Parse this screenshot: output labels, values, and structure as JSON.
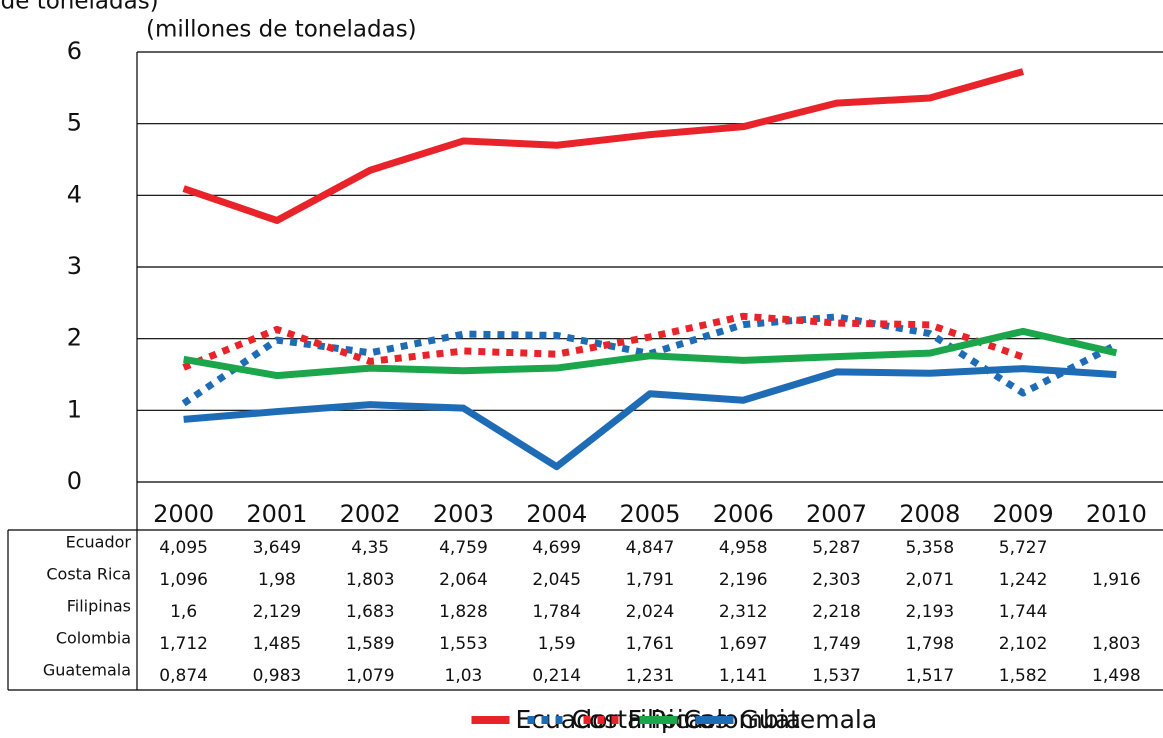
{
  "chart_data": {
    "type": "line",
    "subtitle": "(millones de toneladas)",
    "categories": [
      "2000",
      "2001",
      "2002",
      "2003",
      "2004",
      "2005",
      "2006",
      "2007",
      "2008",
      "2009",
      "2010"
    ],
    "ylim": [
      0,
      6
    ],
    "yticks": [
      0,
      1,
      2,
      3,
      4,
      5,
      6
    ],
    "grid": true,
    "legend": "bottom",
    "series": [
      {
        "name": "Ecuador",
        "color": "#e8232a",
        "style": "solid",
        "values": [
          4.095,
          3.649,
          4.35,
          4.759,
          4.699,
          4.847,
          4.958,
          5.287,
          5.358,
          5.727,
          null
        ],
        "value_labels": [
          "4,095",
          "3,649",
          "4,35",
          "4,759",
          "4,699",
          "4,847",
          "4,958",
          "5,287",
          "5,358",
          "5,727",
          null
        ]
      },
      {
        "name": "Costa Rica",
        "color": "#1f6cb6",
        "style": "dotted",
        "values": [
          1.096,
          1.98,
          1.803,
          2.064,
          2.045,
          1.791,
          2.196,
          2.303,
          2.071,
          1.242,
          1.916
        ],
        "value_labels": [
          "1,096",
          "1,98",
          "1,803",
          "2,064",
          "2,045",
          "1,791",
          "2,196",
          "2,303",
          "2,071",
          "1,242",
          "1,916"
        ]
      },
      {
        "name": "Filipinas",
        "color": "#e8232a",
        "style": "dotted",
        "values": [
          1.6,
          2.129,
          1.683,
          1.828,
          1.784,
          2.024,
          2.312,
          2.218,
          2.193,
          1.744,
          null
        ],
        "value_labels": [
          "1,6",
          "2,129",
          "1,683",
          "1,828",
          "1,784",
          "2,024",
          "2,312",
          "2,218",
          "2,193",
          "1,744",
          null
        ]
      },
      {
        "name": "Colombia",
        "color": "#1ba64b",
        "style": "solid",
        "values": [
          1.712,
          1.485,
          1.589,
          1.553,
          1.59,
          1.761,
          1.697,
          1.749,
          1.798,
          2.102,
          1.803
        ],
        "value_labels": [
          "1,712",
          "1,485",
          "1,589",
          "1,553",
          "1,59",
          "1,761",
          "1,697",
          "1,749",
          "1,798",
          "2,102",
          "1,803"
        ]
      },
      {
        "name": "Guatemala",
        "color": "#1f6cb6",
        "style": "solid",
        "values": [
          0.874,
          0.983,
          1.079,
          1.03,
          0.214,
          1.231,
          1.141,
          1.537,
          1.517,
          1.582,
          1.498
        ],
        "value_labels": [
          "0,874",
          "0,983",
          "1,079",
          "1,03",
          "0,214",
          "1,231",
          "1,141",
          "1,537",
          "1,517",
          "1,582",
          "1,498"
        ]
      }
    ]
  }
}
